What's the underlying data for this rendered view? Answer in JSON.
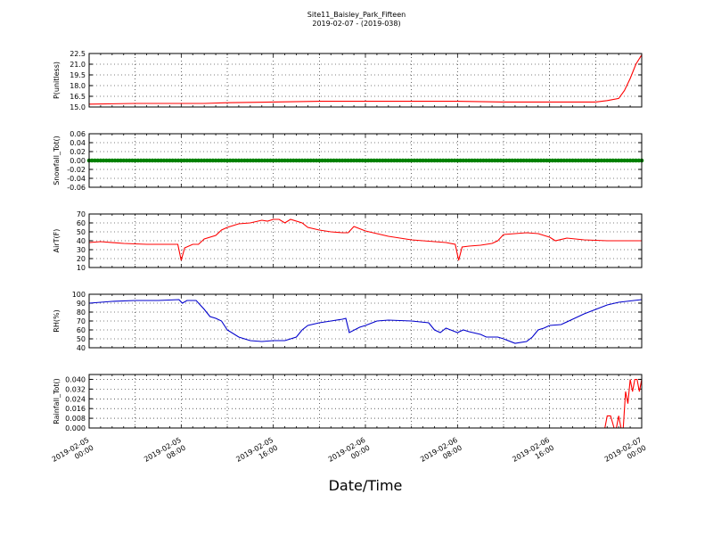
{
  "title": "Site11_Baisley_Park_Fifteen",
  "subtitle": "2019-02-07 - (2019-038)",
  "xlabel": "Date/Time",
  "x_ticks": [
    {
      "line1": "2019-02-05",
      "line2": "00:00"
    },
    {
      "line1": "2019-02-05",
      "line2": "08:00"
    },
    {
      "line1": "2019-02-05",
      "line2": "16:00"
    },
    {
      "line1": "2019-02-06",
      "line2": "00:00"
    },
    {
      "line1": "2019-02-06",
      "line2": "08:00"
    },
    {
      "line1": "2019-02-06",
      "line2": "16:00"
    },
    {
      "line1": "2019-02-07",
      "line2": "00:00"
    }
  ],
  "chart_data": [
    {
      "type": "line",
      "ylabel": "P(unitless)",
      "xlim": [
        "2019-02-05 00:00",
        "2019-02-07 00:00"
      ],
      "ylim": [
        15.0,
        22.5
      ],
      "yticks": [
        "15.0",
        "16.5",
        "18.0",
        "19.5",
        "21.0",
        "22.5"
      ],
      "grid": true,
      "color": "#ff0000",
      "x_hours": [
        0,
        4,
        8,
        10,
        12,
        16,
        20,
        24,
        28,
        32,
        36,
        40,
        44,
        45,
        46,
        46.5,
        47,
        47.5,
        48
      ],
      "y": [
        15.4,
        15.5,
        15.5,
        15.5,
        15.6,
        15.7,
        15.8,
        15.8,
        15.8,
        15.8,
        15.7,
        15.7,
        15.7,
        15.9,
        16.2,
        17.3,
        19.0,
        21.0,
        22.3
      ]
    },
    {
      "type": "scatter",
      "ylabel": "Snowfall_Tot()",
      "xlim": [
        "2019-02-05 00:00",
        "2019-02-07 00:00"
      ],
      "ylim": [
        -0.06,
        0.06
      ],
      "yticks": [
        "0.06",
        "0.04",
        "0.02",
        "0.00",
        "-0.02",
        "-0.04",
        "-0.06"
      ],
      "grid": true,
      "color": "#008000",
      "constant_value": 0.0
    },
    {
      "type": "line",
      "ylabel": "AirT(F)",
      "xlim": [
        "2019-02-05 00:00",
        "2019-02-07 00:00"
      ],
      "ylim": [
        10,
        70
      ],
      "yticks": [
        "70",
        "60",
        "50",
        "40",
        "30",
        "20",
        "10"
      ],
      "grid": true,
      "color": "#ff0000",
      "x_hours": [
        0,
        1,
        3,
        5,
        7,
        7.7,
        8,
        8.3,
        9,
        9.5,
        10,
        11,
        11.5,
        12,
        13,
        14,
        15,
        15.5,
        16,
        16.5,
        17,
        17.5,
        18.5,
        19,
        20,
        21,
        22,
        22.5,
        23,
        24,
        26,
        28,
        30,
        31,
        31.8,
        32.1,
        32.4,
        33,
        34,
        35,
        35.5,
        36,
        37,
        38,
        39,
        40,
        40.5,
        41.5,
        43,
        45,
        48
      ],
      "y": [
        38,
        39,
        37,
        36,
        36,
        36,
        18,
        32,
        36,
        36,
        42,
        46,
        52,
        55,
        59,
        60,
        63,
        62,
        64,
        64,
        60,
        64,
        60,
        55,
        52,
        50,
        49,
        49,
        56,
        51,
        45,
        41,
        39,
        38,
        36,
        18,
        33,
        34,
        35,
        37,
        40,
        47,
        48,
        49,
        48,
        44,
        40,
        43,
        41,
        40,
        40
      ]
    },
    {
      "type": "line",
      "ylabel": "RH(%)",
      "xlim": [
        "2019-02-05 00:00",
        "2019-02-07 00:00"
      ],
      "ylim": [
        40,
        100
      ],
      "yticks": [
        "100",
        "90",
        "80",
        "70",
        "60",
        "50",
        "40"
      ],
      "grid": true,
      "color": "#0000cc",
      "x_hours": [
        0,
        2,
        4,
        6,
        7.8,
        8.1,
        8.5,
        9.3,
        10,
        10.5,
        11,
        11.5,
        12,
        13,
        14,
        15,
        16,
        17,
        18,
        18.5,
        19,
        20,
        21,
        22,
        22.3,
        22.6,
        23.5,
        24,
        25,
        26,
        28,
        29.5,
        30,
        30.5,
        31,
        32,
        32.5,
        33,
        34,
        34.5,
        35.5,
        36,
        37,
        38,
        38.5,
        39,
        39.5,
        40,
        41,
        42,
        43,
        44,
        45,
        46,
        48
      ],
      "y": [
        90,
        92,
        93,
        93,
        94,
        90,
        93,
        93,
        83,
        75,
        73,
        70,
        60,
        52,
        48,
        47,
        48,
        48,
        52,
        60,
        65,
        68,
        70,
        72,
        73,
        57,
        63,
        65,
        70,
        71,
        70,
        68,
        60,
        57,
        62,
        57,
        60,
        58,
        55,
        52,
        52,
        50,
        45,
        47,
        52,
        60,
        62,
        65,
        66,
        72,
        78,
        83,
        88,
        91,
        94
      ]
    },
    {
      "type": "line",
      "ylabel": "Rainfall_Tot()",
      "xlim": [
        "2019-02-05 00:00",
        "2019-02-07 00:00"
      ],
      "ylim": [
        0.0,
        0.044
      ],
      "yticks": [
        "0.040",
        "0.032",
        "0.024",
        "0.016",
        "0.008",
        "0.000"
      ],
      "grid": true,
      "color": "#ff0000",
      "x_hours": [
        0,
        44.8,
        45.0,
        45.3,
        45.6,
        45.8,
        46.0,
        46.2,
        46.4,
        46.6,
        46.8,
        47.0,
        47.2,
        47.4,
        47.6,
        47.8,
        48.0
      ],
      "y": [
        0.0,
        0.0,
        0.01,
        0.01,
        0.0,
        0.0,
        0.01,
        0.0,
        0.0,
        0.03,
        0.02,
        0.04,
        0.03,
        0.04,
        0.04,
        0.03,
        0.04
      ]
    }
  ]
}
